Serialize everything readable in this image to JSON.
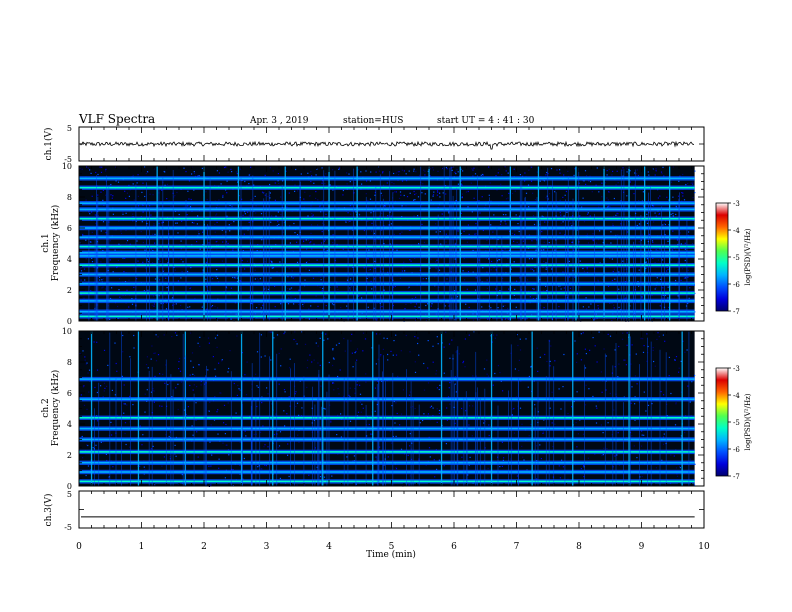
{
  "header": {
    "title": "VLF Spectra",
    "date": "Apr. 3 , 2019",
    "station": "station=HUS",
    "start": "start UT = 4 : 41 : 30"
  },
  "colorbar_label": "log(PSD)(V²/Hz)",
  "colorbar_ticks": [
    "-3",
    "-4",
    "-5",
    "-6",
    "-7"
  ],
  "colors": {
    "background": "#000814",
    "colormap": [
      "#00006e",
      "#0000dc",
      "#0050ff",
      "#00b4ff",
      "#00ffc8",
      "#50ff50",
      "#ffff00",
      "#ff6400",
      "#dc0000",
      "#ffffff"
    ]
  },
  "chart_data": [
    {
      "type": "line",
      "name": "waveform-ch1",
      "ylabel": "ch.1(V)",
      "ylim": [
        -5,
        5
      ],
      "ytick_labels": [
        "5",
        "-5"
      ],
      "xlim": [
        0,
        10
      ],
      "baseline": 0,
      "noise_amplitude": 0.6,
      "spikes": [
        {
          "x": 6.6,
          "y": -1.5
        }
      ]
    },
    {
      "type": "heatmap",
      "name": "spectrogram-ch1",
      "ylabel": "ch.1 Frequency (kHz)",
      "ylim": [
        0,
        10
      ],
      "ytick_labels": [
        "0",
        "2",
        "4",
        "6",
        "8",
        "10"
      ],
      "xlim": [
        0,
        10
      ],
      "data_end_x": 9.85,
      "horizontal_lines_khz": [
        0.3,
        0.6,
        1.3,
        1.8,
        2.4,
        3.0,
        3.6,
        4.2,
        4.4,
        4.8,
        5.4,
        6.0,
        6.6,
        7.2,
        7.6,
        8.6,
        9.2
      ],
      "vertical_spikes_min": [
        1.25,
        2.0,
        2.55,
        3.3,
        4.0,
        4.45,
        5.6,
        6.1,
        6.9,
        7.35,
        7.95,
        8.4,
        8.8,
        9.05,
        9.45
      ]
    },
    {
      "type": "heatmap",
      "name": "spectrogram-ch2",
      "ylabel": "ch.2 Frequency (kHz)",
      "ylim": [
        0,
        10
      ],
      "ytick_labels": [
        "0",
        "2",
        "4",
        "6",
        "8",
        "10"
      ],
      "xlim": [
        0,
        10
      ],
      "data_end_x": 9.85,
      "horizontal_lines_khz": [
        0.3,
        0.9,
        1.5,
        2.2,
        3.0,
        3.7,
        4.4,
        5.6,
        6.9
      ],
      "vertical_spikes_min": [
        0.2,
        0.95,
        1.7,
        2.6,
        3.1,
        3.9,
        4.7,
        5.8,
        6.6,
        7.25,
        7.9,
        8.8,
        9.65
      ]
    },
    {
      "type": "line",
      "name": "waveform-ch3",
      "ylabel": "ch.3(V)",
      "ylim": [
        -5,
        5
      ],
      "ytick_labels": [
        "5",
        "-5"
      ],
      "xlim": [
        0,
        10
      ],
      "baseline": -2,
      "noise_amplitude": 0
    }
  ],
  "x_axis": {
    "label": "Time (min)",
    "tick_labels": [
      "0",
      "1",
      "2",
      "3",
      "4",
      "5",
      "6",
      "7",
      "8",
      "9",
      "10"
    ]
  }
}
